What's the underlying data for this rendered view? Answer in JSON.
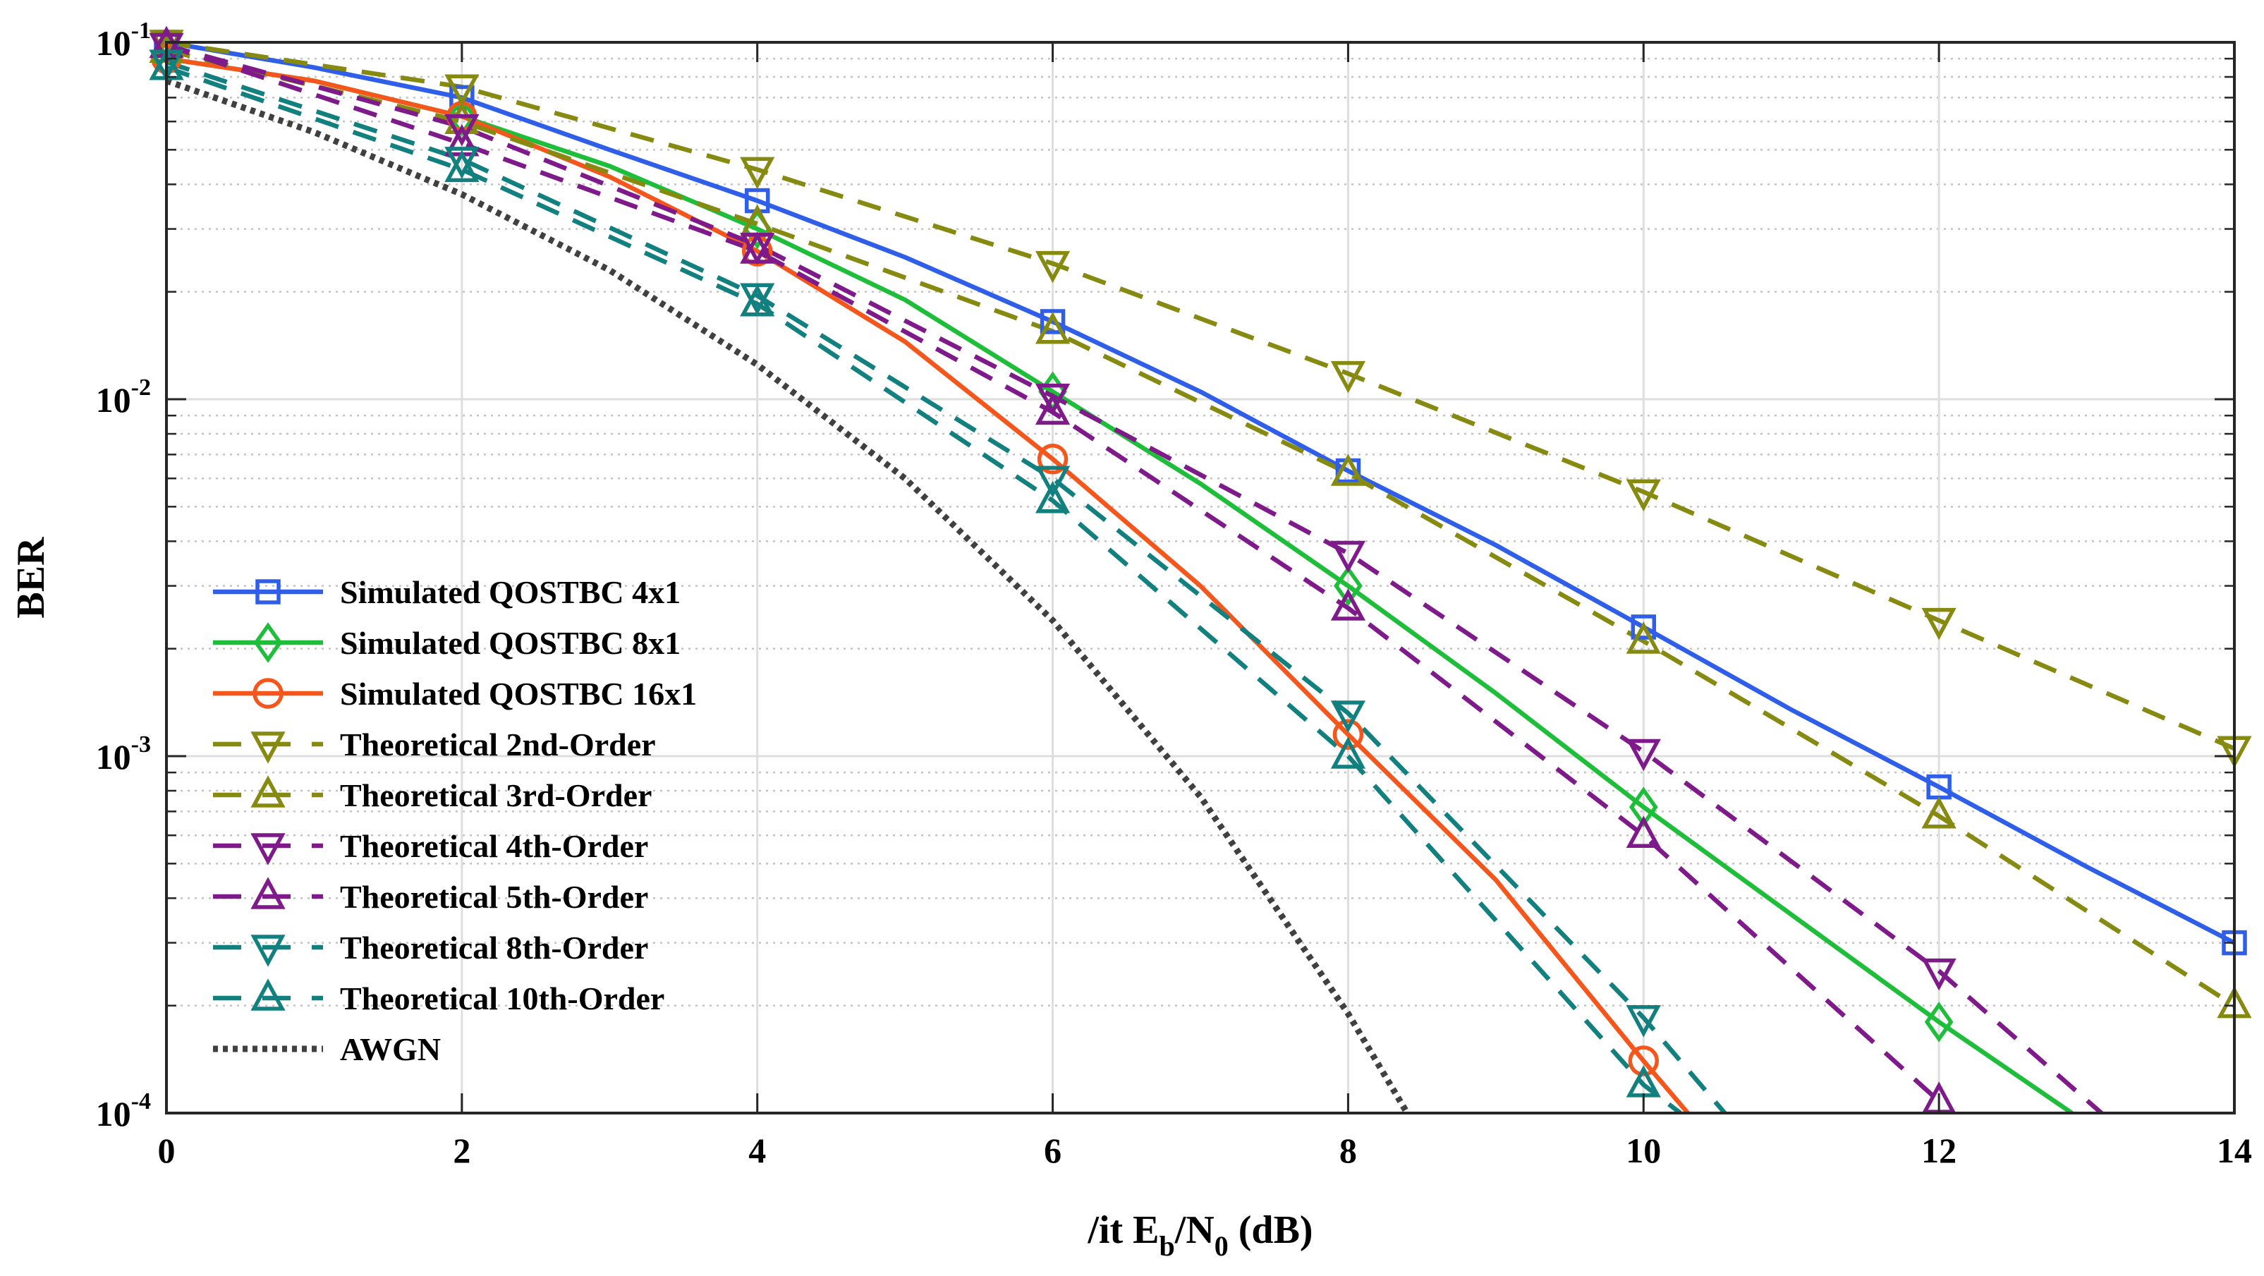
{
  "chart_data": {
    "type": "line",
    "title": "",
    "xlabel_main": "/it E",
    "xlabel_sub1": "b",
    "xlabel_mid": "/N",
    "xlabel_sub2": "0",
    "xlabel_tail": " (dB)",
    "ylabel": "BER",
    "x_scale": "linear",
    "y_scale": "log",
    "xlim": [
      0,
      14
    ],
    "ylim": [
      0.0001,
      0.1
    ],
    "grid": true,
    "legend_position": "lower-left",
    "x_ticks": [
      {
        "value": 0,
        "label": "0"
      },
      {
        "value": 2,
        "label": "2"
      },
      {
        "value": 4,
        "label": "4"
      },
      {
        "value": 6,
        "label": "6"
      },
      {
        "value": 8,
        "label": "8"
      },
      {
        "value": 10,
        "label": "10"
      },
      {
        "value": 12,
        "label": "12"
      },
      {
        "value": 14,
        "label": "14"
      }
    ],
    "y_ticks": [
      {
        "value": 0.1,
        "base": "10",
        "exp": "-1"
      },
      {
        "value": 0.01,
        "base": "10",
        "exp": "-2"
      },
      {
        "value": 0.001,
        "base": "10",
        "exp": "-3"
      },
      {
        "value": 0.0001,
        "base": "10",
        "exp": "-4"
      }
    ],
    "series": [
      {
        "name": "Simulated QOSTBC 4x1",
        "color": "#2f5ee8",
        "dash": "solid",
        "marker": "square",
        "x": [
          0,
          1,
          2,
          3,
          4,
          5,
          6,
          7,
          8,
          9,
          10,
          11,
          12,
          13,
          14
        ],
        "y": [
          0.1,
          0.085,
          0.07,
          0.05,
          0.036,
          0.025,
          0.0165,
          0.0105,
          0.0063,
          0.0039,
          0.0023,
          0.00135,
          0.00082,
          0.00049,
          0.0003
        ],
        "markers_x": [
          0,
          2,
          4,
          6,
          8,
          10,
          12,
          14
        ]
      },
      {
        "name": "Simulated QOSTBC 8x1",
        "color": "#1fbe3a",
        "dash": "solid",
        "marker": "diamond",
        "x": [
          0,
          1,
          2,
          3,
          4,
          5,
          6,
          7,
          8,
          9,
          10,
          11,
          12,
          12.9
        ],
        "y": [
          0.09,
          0.078,
          0.062,
          0.045,
          0.03,
          0.019,
          0.0105,
          0.0058,
          0.003,
          0.0015,
          0.00072,
          0.00036,
          0.00018,
          0.0001
        ],
        "markers_x": [
          0,
          2,
          4,
          6,
          8,
          10,
          12
        ]
      },
      {
        "name": "Simulated QOSTBC 16x1",
        "color": "#f5561c",
        "dash": "solid",
        "marker": "circle",
        "x": [
          0,
          1,
          2,
          3,
          4,
          5,
          6,
          7,
          8,
          9,
          10,
          10.3
        ],
        "y": [
          0.09,
          0.078,
          0.062,
          0.042,
          0.026,
          0.0145,
          0.0068,
          0.003,
          0.00115,
          0.00045,
          0.00014,
          0.0001
        ],
        "markers_x": [
          0,
          2,
          4,
          6,
          8,
          10
        ]
      },
      {
        "name": "Theoretical 2nd-Order",
        "color": "#868a10",
        "dash": "dashed",
        "marker": "triangle-down",
        "x": [
          0,
          2,
          4,
          6,
          8,
          10,
          12,
          14
        ],
        "y": [
          0.1,
          0.075,
          0.044,
          0.024,
          0.0118,
          0.0055,
          0.0024,
          0.00105
        ],
        "markers_x": [
          0,
          2,
          4,
          6,
          8,
          10,
          12,
          14
        ]
      },
      {
        "name": "Theoretical 3rd-Order",
        "color": "#868a10",
        "dash": "dashed",
        "marker": "triangle-up",
        "x": [
          0,
          2,
          4,
          6,
          8,
          10,
          12,
          14
        ],
        "y": [
          0.095,
          0.06,
          0.031,
          0.0155,
          0.0062,
          0.0021,
          0.00068,
          0.0002
        ],
        "markers_x": [
          0,
          2,
          4,
          6,
          8,
          10,
          12,
          14
        ]
      },
      {
        "name": "Theoretical 4th-Order",
        "color": "#7e1a8a",
        "dash": "dashed",
        "marker": "triangle-down",
        "x": [
          0,
          2,
          4,
          6,
          8,
          10,
          12,
          13.1
        ],
        "y": [
          0.098,
          0.058,
          0.027,
          0.0102,
          0.0037,
          0.00103,
          0.00025,
          0.0001
        ],
        "markers_x": [
          0,
          2,
          4,
          6,
          8,
          10,
          12
        ]
      },
      {
        "name": "Theoretical 5th-Order",
        "color": "#7e1a8a",
        "dash": "dashed",
        "marker": "triangle-up",
        "x": [
          0,
          2,
          4,
          6,
          8,
          10,
          12
        ],
        "y": [
          0.098,
          0.052,
          0.026,
          0.0092,
          0.0026,
          0.0006,
          0.000108
        ],
        "markers_x": [
          0,
          2,
          4,
          6,
          8,
          10,
          12
        ]
      },
      {
        "name": "Theoretical 8th-Order",
        "color": "#138080",
        "dash": "dashed",
        "marker": "triangle-down",
        "x": [
          0,
          2,
          4,
          6,
          8,
          10,
          10.55
        ],
        "y": [
          0.088,
          0.047,
          0.0195,
          0.006,
          0.00132,
          0.000185,
          0.0001
        ],
        "markers_x": [
          0,
          2,
          4,
          6,
          8,
          10
        ]
      },
      {
        "name": "Theoretical 10th-Order",
        "color": "#138080",
        "dash": "dashed",
        "marker": "triangle-up",
        "x": [
          0,
          2,
          4,
          6,
          8,
          10,
          10.25
        ],
        "y": [
          0.085,
          0.044,
          0.0185,
          0.0052,
          0.001,
          0.00012,
          0.0001
        ],
        "markers_x": [
          0,
          2,
          4,
          6,
          8,
          10
        ]
      },
      {
        "name": "AWGN",
        "color": "#404040",
        "dash": "dotted",
        "marker": "none",
        "x": [
          0,
          1,
          2,
          3,
          4,
          5,
          6,
          7,
          8,
          8.4
        ],
        "y": [
          0.078,
          0.056,
          0.0375,
          0.023,
          0.0125,
          0.006,
          0.0024,
          0.00077,
          0.00019,
          0.0001
        ],
        "markers_x": []
      }
    ]
  }
}
